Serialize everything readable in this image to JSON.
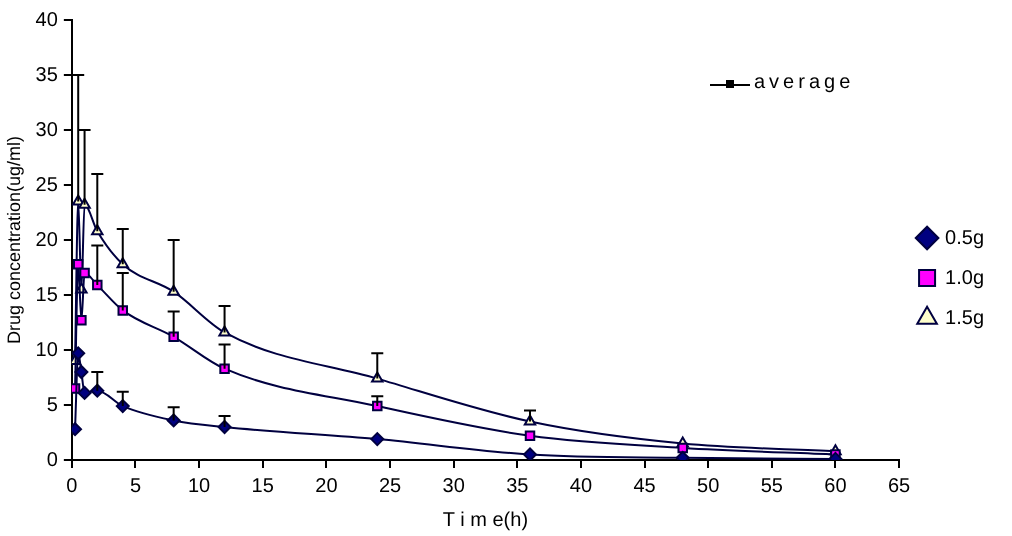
{
  "chart_data": {
    "type": "line",
    "xlabel": "T i m e(h)",
    "ylabel": "Drug concentration(ug/ml)",
    "annotations": [
      "average"
    ],
    "x": [
      0.25,
      0.5,
      0.75,
      1,
      2,
      4,
      8,
      12,
      24,
      36,
      48,
      60
    ],
    "xlim": [
      0,
      65
    ],
    "xticks": [
      0,
      5,
      10,
      15,
      20,
      25,
      30,
      35,
      40,
      45,
      50,
      55,
      60,
      65
    ],
    "ylim": [
      0,
      40
    ],
    "yticks": [
      0,
      5,
      10,
      15,
      20,
      25,
      30,
      35,
      40
    ],
    "grid": false,
    "legend": "right",
    "series": [
      {
        "name": "0.5g",
        "color": "#000080",
        "marker": "diamond",
        "values": [
          2.8,
          9.7,
          8.0,
          6.1,
          6.3,
          4.9,
          3.6,
          3.0,
          1.9,
          0.5,
          0.2,
          0.1
        ],
        "errors": [
          null,
          null,
          null,
          null,
          [
            6.3,
            8.0
          ],
          [
            4.9,
            6.2
          ],
          [
            3.6,
            4.8
          ],
          [
            3.0,
            4.0
          ],
          null,
          null,
          null,
          null
        ]
      },
      {
        "name": "1.0g",
        "color": "#ff00ff",
        "marker": "square",
        "values": [
          6.5,
          17.8,
          12.7,
          17.0,
          15.9,
          13.6,
          11.2,
          8.3,
          4.9,
          2.2,
          1.1,
          0.5
        ],
        "errors": [
          null,
          null,
          null,
          null,
          [
            15.9,
            19.5
          ],
          [
            13.6,
            17.0
          ],
          [
            11.2,
            13.5
          ],
          [
            8.3,
            10.5
          ],
          [
            4.9,
            5.8
          ],
          null,
          null,
          null
        ]
      },
      {
        "name": "1.5g",
        "color": "#ffffcc",
        "marker": "triangle",
        "values": [
          9.0,
          23.5,
          15.5,
          23.2,
          20.8,
          17.8,
          15.3,
          11.6,
          7.4,
          3.5,
          1.5,
          0.8
        ],
        "errors": [
          null,
          [
            23.5,
            35.0
          ],
          null,
          [
            23.2,
            30.0
          ],
          [
            20.8,
            26.0
          ],
          [
            17.8,
            21.0
          ],
          [
            15.3,
            20.0
          ],
          [
            11.6,
            14.0
          ],
          [
            7.4,
            9.7
          ],
          [
            3.5,
            4.5
          ],
          null,
          null
        ]
      }
    ]
  }
}
